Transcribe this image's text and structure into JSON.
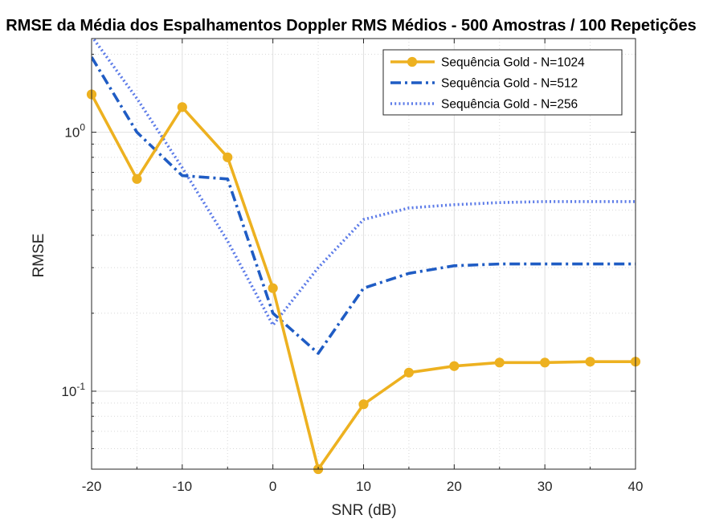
{
  "chart_data": {
    "type": "line",
    "title": "RMSE da Média dos Espalhamentos Doppler RMS Médios - 500 Amostras / 100 Repetições",
    "xlabel": "SNR (dB)",
    "ylabel": "RMSE",
    "xlim": [
      -20,
      40
    ],
    "ylim": [
      0.05,
      2.3
    ],
    "yscale": "log",
    "grid": true,
    "legend_position": "top-right",
    "x_ticks": [
      -20,
      -10,
      0,
      10,
      20,
      30,
      40
    ],
    "y_ticks": [
      {
        "value": 0.1,
        "base": "10",
        "exp": "-1"
      },
      {
        "value": 1,
        "base": "10",
        "exp": "0"
      }
    ],
    "x": [
      -20,
      -15,
      -10,
      -5,
      0,
      5,
      10,
      15,
      20,
      25,
      30,
      35,
      40
    ],
    "series": [
      {
        "name": "Sequência Gold - N=1024",
        "color": "#EDB120",
        "style": "solid",
        "marker": "circle",
        "values": [
          1.4,
          0.66,
          1.25,
          0.8,
          0.25,
          0.05,
          0.089,
          0.118,
          0.125,
          0.129,
          0.129,
          0.13,
          0.13
        ]
      },
      {
        "name": "Sequência Gold - N=512",
        "color": "#1F5CC4",
        "style": "dashdot",
        "marker": "none",
        "values": [
          1.95,
          1.0,
          0.68,
          0.66,
          0.2,
          0.14,
          0.25,
          0.285,
          0.305,
          0.31,
          0.31,
          0.31,
          0.31
        ]
      },
      {
        "name": "Sequência Gold - N=256",
        "color": "#5C7BE8",
        "style": "dotted",
        "marker": "none",
        "values": [
          2.35,
          1.35,
          0.73,
          0.38,
          0.18,
          0.3,
          0.46,
          0.51,
          0.525,
          0.535,
          0.54,
          0.54,
          0.54
        ]
      }
    ]
  }
}
